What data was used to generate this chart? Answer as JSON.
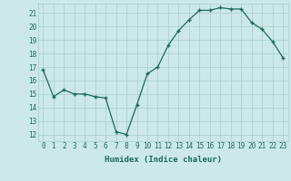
{
  "x": [
    0,
    1,
    2,
    3,
    4,
    5,
    6,
    7,
    8,
    9,
    10,
    11,
    12,
    13,
    14,
    15,
    16,
    17,
    18,
    19,
    20,
    21,
    22,
    23
  ],
  "y": [
    16.8,
    14.8,
    15.3,
    15.0,
    15.0,
    14.8,
    14.7,
    12.2,
    12.0,
    14.2,
    16.5,
    17.0,
    18.6,
    19.7,
    20.5,
    21.2,
    21.2,
    21.4,
    21.3,
    21.3,
    20.3,
    19.8,
    18.9,
    17.7
  ],
  "ylim": [
    11.5,
    21.7
  ],
  "yticks": [
    12,
    13,
    14,
    15,
    16,
    17,
    18,
    19,
    20,
    21
  ],
  "xticks": [
    0,
    1,
    2,
    3,
    4,
    5,
    6,
    7,
    8,
    9,
    10,
    11,
    12,
    13,
    14,
    15,
    16,
    17,
    18,
    19,
    20,
    21,
    22,
    23
  ],
  "xlabel": "Humidex (Indice chaleur)",
  "line_color": "#1a6b5a",
  "marker": "+",
  "bg_color": "#cce8e8",
  "grid_color": "#aacccc",
  "tick_fontsize": 5.5,
  "label_fontsize": 6.5
}
